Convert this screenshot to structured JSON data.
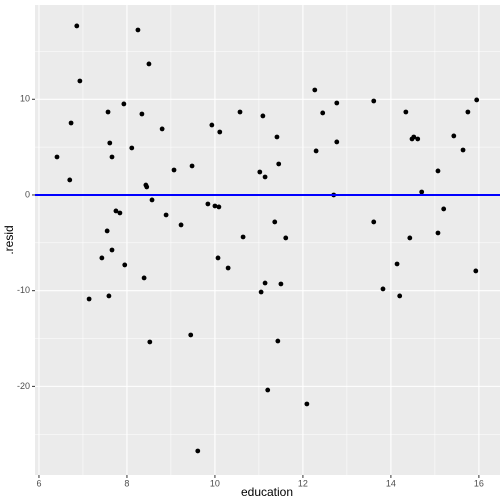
{
  "chart_data": {
    "type": "scatter",
    "x_label": "education",
    "y_label": ".resid",
    "xlim": [
      5.91,
      16.48
    ],
    "ylim": [
      -29.26,
      19.85
    ],
    "xticks": [
      6,
      8,
      10,
      12,
      14,
      16
    ],
    "yticks": [
      -20,
      -10,
      0,
      10
    ],
    "xminor": [
      7,
      9,
      11,
      13,
      15
    ],
    "yminor": [
      -25,
      -15,
      -5,
      5,
      15
    ],
    "grid": true,
    "point_color": "#000000",
    "reference_line": {
      "y": 0,
      "color": "#0000ff"
    },
    "x": [
      6.41,
      6.7,
      6.73,
      6.86,
      6.93,
      7.14,
      7.43,
      7.55,
      7.57,
      7.59,
      7.61,
      7.66,
      7.66,
      7.75,
      7.84,
      7.93,
      7.95,
      8.11,
      8.25,
      8.34,
      8.39,
      8.43,
      8.45,
      8.5,
      8.52,
      8.57,
      8.8,
      8.89,
      9.07,
      9.23,
      9.45,
      9.48,
      9.61,
      9.84,
      9.93,
      10.0,
      10.09,
      10.07,
      10.11,
      10.3,
      10.57,
      10.64,
      11.02,
      11.05,
      11.09,
      11.14,
      11.14,
      11.2,
      11.36,
      11.41,
      11.43,
      11.45,
      11.5,
      11.61,
      12.09,
      12.27,
      12.3,
      12.45,
      12.7,
      12.77,
      12.77,
      13.61,
      13.61,
      13.82,
      14.14,
      14.2,
      14.34,
      14.43,
      14.48,
      14.52,
      14.61,
      14.7,
      15.07,
      15.07,
      15.2,
      15.43,
      15.64,
      15.75,
      15.93,
      15.95
    ],
    "values": [
      3.97,
      1.57,
      7.52,
      17.66,
      11.91,
      -10.87,
      -6.58,
      -3.76,
      8.67,
      -10.55,
      5.43,
      3.97,
      -5.75,
      -1.67,
      -1.88,
      9.51,
      -7.31,
      4.91,
      17.24,
      8.46,
      -8.67,
      1.04,
      0.84,
      13.69,
      -15.36,
      -0.52,
      6.9,
      -2.09,
      2.61,
      -3.13,
      -14.63,
      3.03,
      -26.75,
      -0.94,
      7.31,
      -1.15,
      -1.25,
      -6.58,
      6.58,
      -7.63,
      8.67,
      -4.39,
      2.4,
      -10.14,
      8.26,
      1.88,
      -9.2,
      -20.38,
      -2.82,
      6.06,
      -15.26,
      3.24,
      -9.3,
      -4.49,
      -21.84,
      10.97,
      4.6,
      8.57,
      0.0,
      9.61,
      5.54,
      9.82,
      -2.82,
      -9.82,
      -7.21,
      -10.55,
      8.67,
      -4.49,
      5.85,
      6.06,
      5.85,
      0.31,
      2.51,
      -3.97,
      -1.46,
      6.17,
      4.7,
      8.67,
      -7.94,
      9.93
    ]
  }
}
